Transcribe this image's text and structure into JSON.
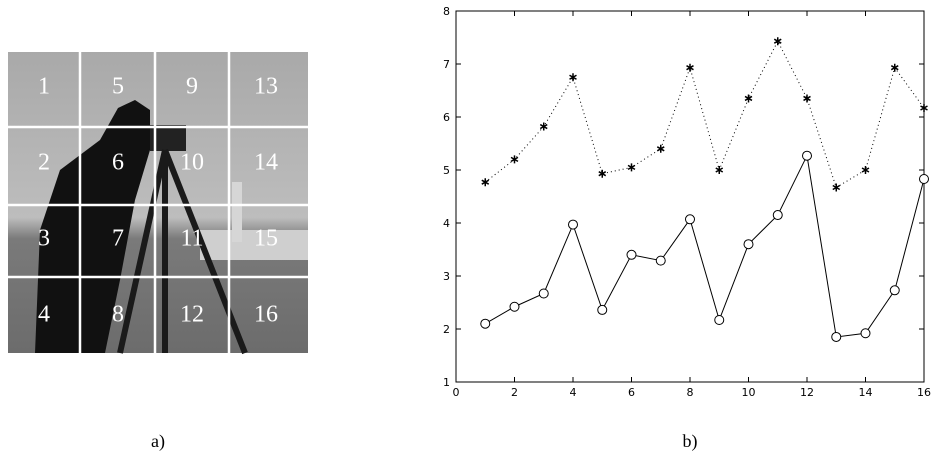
{
  "image": {
    "block_labels": [
      "1",
      "2",
      "3",
      "4",
      "5",
      "6",
      "7",
      "8",
      "9",
      "10",
      "11",
      "12",
      "13",
      "14",
      "15",
      "16"
    ]
  },
  "panels": [
    "a)",
    "b)"
  ],
  "chart_data": {
    "type": "line",
    "x": [
      1,
      2,
      3,
      4,
      5,
      6,
      7,
      8,
      9,
      10,
      11,
      12,
      13,
      14,
      15,
      16
    ],
    "series": [
      {
        "color": "#000000",
        "marker": "star",
        "linestyle": "dotted",
        "values": [
          4.77,
          5.2,
          5.82,
          6.75,
          4.93,
          5.05,
          5.4,
          6.93,
          5.0,
          6.35,
          7.43,
          6.35,
          4.67,
          5.0,
          6.93,
          6.17
        ]
      },
      {
        "color": "#000000",
        "marker": "circle",
        "linestyle": "solid",
        "values": [
          2.1,
          2.42,
          2.67,
          3.97,
          2.36,
          3.4,
          3.29,
          4.07,
          2.17,
          3.6,
          4.15,
          5.27,
          1.85,
          1.92,
          2.73,
          4.83
        ]
      }
    ],
    "xlim": [
      0,
      16
    ],
    "xticks": [
      0,
      2,
      4,
      6,
      8,
      10,
      12,
      14,
      16
    ],
    "ylim": [
      1,
      8
    ],
    "yticks": [
      1,
      2,
      3,
      4,
      5,
      6,
      7,
      8
    ]
  }
}
